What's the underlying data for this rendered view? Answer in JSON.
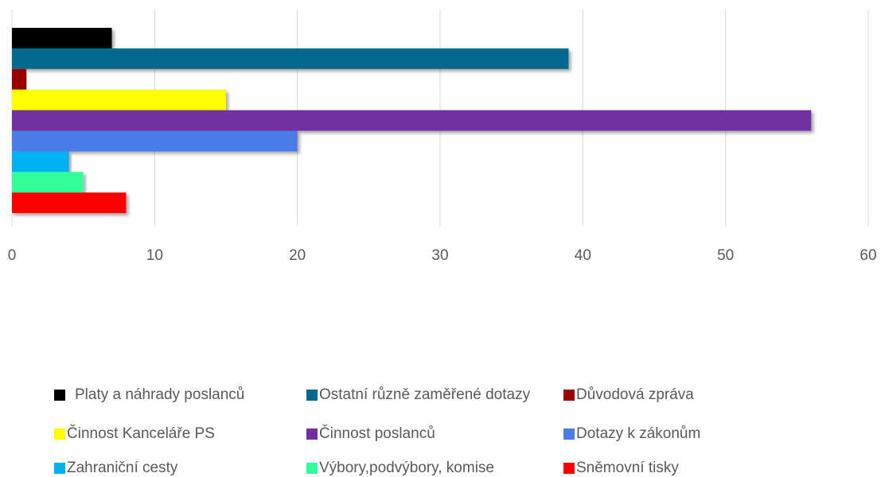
{
  "chart_data": {
    "type": "bar",
    "orientation": "horizontal",
    "categories": [
      null
    ],
    "series": [
      {
        "name": "Platy a náhrady poslanců",
        "color": "#000000",
        "values": [
          7
        ]
      },
      {
        "name": "Ostatní různě zaměřené dotazy",
        "color": "#006a8e",
        "values": [
          39
        ]
      },
      {
        "name": "Důvodová zpráva",
        "color": "#990000",
        "values": [
          1
        ]
      },
      {
        "name": "Činnost Kanceláře PS",
        "color": "#ffff00",
        "values": [
          15
        ]
      },
      {
        "name": "Činnost poslanců",
        "color": "#7030a0",
        "values": [
          56
        ]
      },
      {
        "name": "Dotazy k zákonům",
        "color": "#4a7be6",
        "values": [
          20
        ]
      },
      {
        "name": "Zahraniční cesty",
        "color": "#00b0f0",
        "values": [
          4
        ]
      },
      {
        "name": "Výbory,podvýbory, komise",
        "color": "#33ff99",
        "values": [
          5
        ]
      },
      {
        "name": "Sněmovní tisky",
        "color": "#ff0000",
        "values": [
          8
        ]
      }
    ],
    "xlim": [
      0,
      60
    ],
    "xticks": [
      0,
      10,
      20,
      30,
      40,
      50,
      60
    ],
    "grid": true,
    "legend": "bottom"
  }
}
